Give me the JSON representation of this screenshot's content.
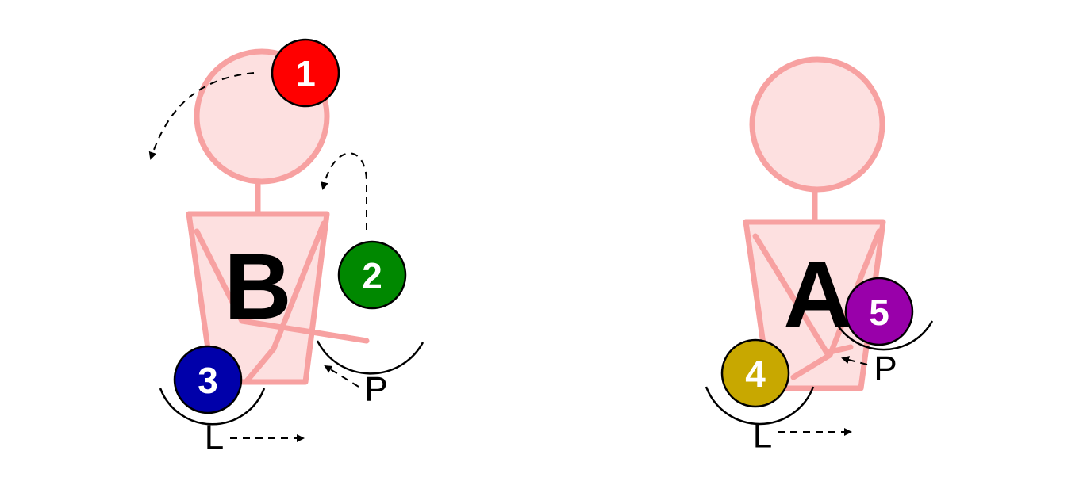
{
  "figures": [
    {
      "id": "B",
      "letter": "B"
    },
    {
      "id": "A",
      "letter": "A"
    }
  ],
  "balls": [
    {
      "id": "1",
      "label": "1",
      "color": "#ff0000"
    },
    {
      "id": "2",
      "label": "2",
      "color": "#008800"
    },
    {
      "id": "3",
      "label": "3",
      "color": "#0000aa"
    },
    {
      "id": "4",
      "label": "4",
      "color": "#c8a800"
    },
    {
      "id": "5",
      "label": "5",
      "color": "#9900aa"
    }
  ],
  "labels": {
    "b_p": "P",
    "b_l": "L",
    "a_p": "P",
    "a_l": "L"
  },
  "colors": {
    "figure_fill": "#fde0e0",
    "figure_outline": "#f7a1a1"
  }
}
